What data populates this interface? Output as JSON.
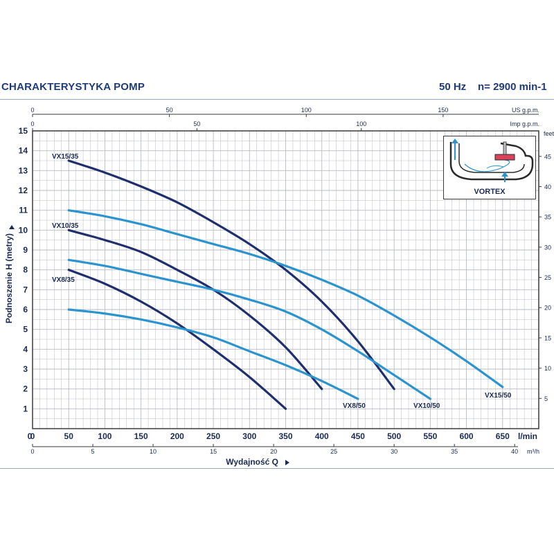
{
  "header": {
    "title": "CHARAKTERYSTYKA POMP",
    "frequency": "50 Hz",
    "speed": "n= 2900 min-1"
  },
  "inset": {
    "label": "VORTEX",
    "icon": "vortex-impeller-diagram-icon"
  },
  "colors": {
    "grid": "#b8bcc4",
    "frame": "#3a3a3a",
    "series_35": "#1f2f6e",
    "series_50": "#2b93cf",
    "text": "#1b2a55"
  },
  "chart_data": {
    "type": "line",
    "xlabel": "Wydajność Q",
    "ylabel": "Podnoszenie H (metry)",
    "xlim": [
      0,
      700
    ],
    "ylim": [
      0,
      15
    ],
    "x_unit": "l/min",
    "x_ticks": [
      0,
      50,
      100,
      150,
      200,
      250,
      300,
      350,
      400,
      450,
      500,
      550,
      600,
      650
    ],
    "y_ticks": [
      1,
      2,
      3,
      4,
      5,
      6,
      7,
      8,
      9,
      10,
      11,
      12,
      13,
      14,
      15
    ],
    "secondary_axes": {
      "m3h": {
        "unit": "m³/h",
        "ticks": [
          0,
          5,
          10,
          15,
          20,
          25,
          30,
          35,
          40
        ]
      },
      "us_gpm": {
        "unit": "US g.p.m.",
        "ticks": [
          0,
          50,
          100,
          150
        ]
      },
      "imp_gpm": {
        "unit": "Imp g.p.m.",
        "ticks": [
          0,
          50,
          100
        ]
      },
      "feet": {
        "unit": "feet",
        "ticks": [
          5,
          10,
          15,
          20,
          25,
          30,
          35,
          40,
          45
        ]
      }
    },
    "grid": true,
    "series": [
      {
        "name": "VX15/35",
        "x": [
          50,
          100,
          150,
          200,
          250,
          300,
          350,
          400,
          450,
          500
        ],
        "y": [
          13.5,
          12.9,
          12.2,
          11.4,
          10.4,
          9.3,
          8.0,
          6.4,
          4.4,
          2.0
        ]
      },
      {
        "name": "VX10/35",
        "x": [
          50,
          100,
          150,
          200,
          250,
          300,
          350,
          400
        ],
        "y": [
          10.0,
          9.5,
          8.9,
          8.0,
          7.0,
          5.7,
          4.1,
          2.0
        ]
      },
      {
        "name": "VX8/35",
        "x": [
          50,
          100,
          150,
          200,
          250,
          300,
          350
        ],
        "y": [
          8.0,
          7.3,
          6.4,
          5.3,
          4.0,
          2.6,
          1.0
        ]
      },
      {
        "name": "VX15/50",
        "x": [
          50,
          100,
          150,
          200,
          250,
          300,
          350,
          400,
          450,
          500,
          550,
          600,
          650
        ],
        "y": [
          11.0,
          10.7,
          10.3,
          9.8,
          9.3,
          8.8,
          8.2,
          7.5,
          6.7,
          5.7,
          4.6,
          3.4,
          2.1
        ]
      },
      {
        "name": "VX10/50",
        "x": [
          50,
          100,
          150,
          200,
          250,
          300,
          350,
          400,
          450,
          500,
          550
        ],
        "y": [
          8.5,
          8.2,
          7.8,
          7.4,
          7.0,
          6.5,
          5.9,
          5.0,
          3.9,
          2.7,
          1.5
        ]
      },
      {
        "name": "VX8/50",
        "x": [
          50,
          100,
          150,
          200,
          250,
          300,
          350,
          400,
          450
        ],
        "y": [
          6.0,
          5.8,
          5.5,
          5.1,
          4.6,
          3.9,
          3.2,
          2.4,
          1.5
        ]
      }
    ]
  }
}
